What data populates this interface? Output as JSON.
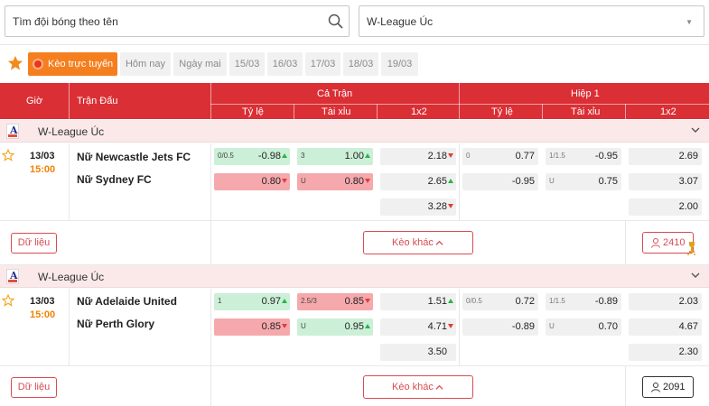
{
  "search": {
    "placeholder": "Tìm đội bóng theo tên"
  },
  "league_select": {
    "value": "W-League Úc"
  },
  "filters": {
    "live_label": "Kèo trực tuyến",
    "chips": [
      "Hôm nay",
      "Ngày mai",
      "15/03",
      "16/03",
      "17/03",
      "18/03",
      "19/03"
    ]
  },
  "header": {
    "time": "Giờ",
    "match": "Trận Đấu",
    "full_time": "Cả Trận",
    "first_half": "Hiệp 1",
    "cols": [
      "Tỷ lệ",
      "Tài xỉu",
      "1x2",
      "Tỷ lệ",
      "Tài xỉu",
      "1x2"
    ]
  },
  "leagues": [
    {
      "name": "W-League Úc",
      "match": {
        "date": "13/03",
        "time": "15:00",
        "home": "Nữ Newcastle Jets FC",
        "away": "Nữ Sydney FC",
        "ft_handicap": [
          {
            "k": "0/0.5",
            "v": "-0.98",
            "arrow": "up",
            "color": "green"
          },
          {
            "k": "",
            "v": "0.80",
            "arrow": "down",
            "color": "red"
          }
        ],
        "ft_ou": [
          {
            "k": "3",
            "v": "1.00",
            "arrow": "up",
            "color": "green"
          },
          {
            "k": "U",
            "v": "0.80",
            "arrow": "down",
            "color": "red"
          }
        ],
        "ft_1x2": [
          {
            "v": "2.18",
            "arrow": "down"
          },
          {
            "v": "2.65",
            "arrow": "up"
          },
          {
            "v": "3.28",
            "arrow": "down"
          }
        ],
        "h1_handicap": [
          {
            "k": "0",
            "v": "0.77"
          },
          {
            "k": "",
            "v": "-0.95"
          }
        ],
        "h1_ou": [
          {
            "k": "1/1.5",
            "v": "-0.95"
          },
          {
            "k": "U",
            "v": "0.75"
          }
        ],
        "h1_1x2": [
          "2.69",
          "3.07",
          "2.00"
        ],
        "data_label": "Dữ liệu",
        "more_label": "Kèo khác",
        "count": "2410"
      }
    },
    {
      "name": "W-League Úc",
      "match": {
        "date": "13/03",
        "time": "15:00",
        "home": "Nữ Adelaide United",
        "away": "Nữ Perth Glory",
        "ft_handicap": [
          {
            "k": "1",
            "v": "0.97",
            "arrow": "up",
            "color": "green"
          },
          {
            "k": "",
            "v": "0.85",
            "arrow": "down",
            "color": "red"
          }
        ],
        "ft_ou": [
          {
            "k": "2.5/3",
            "v": "0.85",
            "arrow": "down",
            "color": "red"
          },
          {
            "k": "U",
            "v": "0.95",
            "arrow": "up",
            "color": "green"
          }
        ],
        "ft_1x2": [
          {
            "v": "1.51",
            "arrow": "up"
          },
          {
            "v": "4.71",
            "arrow": "down"
          },
          {
            "v": "3.50",
            "arrow": ""
          }
        ],
        "h1_handicap": [
          {
            "k": "0/0.5",
            "v": "0.72"
          },
          {
            "k": "",
            "v": "-0.89"
          }
        ],
        "h1_ou": [
          {
            "k": "1/1.5",
            "v": "-0.89"
          },
          {
            "k": "U",
            "v": "0.70"
          }
        ],
        "h1_1x2": [
          "2.03",
          "4.67",
          "2.30"
        ],
        "data_label": "Dữ liệu",
        "more_label": "Kèo khác",
        "count": "2091"
      }
    }
  ],
  "colors": {
    "header_red": "#da2f35",
    "live_orange": "#f57f1f",
    "odds_up": "#2ab34a",
    "odds_down": "#e23b3b",
    "time_orange": "#f08200"
  }
}
